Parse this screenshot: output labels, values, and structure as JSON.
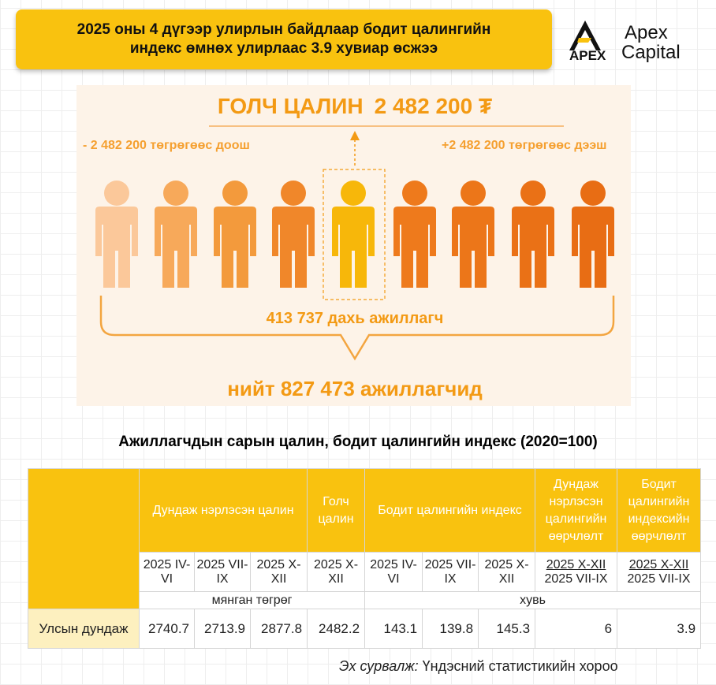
{
  "header": {
    "title": [
      "2025 оны 4 дүгээр улирлын байдлаар бодит цалингийн",
      "индекс өмнөх улирлаас 3.9 хувиар өсжээ"
    ],
    "logo": {
      "mark": "APEX",
      "name_1": "Apex",
      "name_2": "Capital"
    }
  },
  "infographic": {
    "title_label": "ГОЛЧ ЦАЛИН",
    "title_value": "2 482 200 ₮",
    "left_label": "- 2 482 200 төгрөгөөс доош",
    "right_label": "+2 482 200 төгрөгөөс дээш",
    "median_label": "413 737 дахь ажиллагч",
    "total_label": "нийт 827 473 ажиллагчид"
  },
  "table": {
    "title": "Ажиллагчдын сарын цалин, бодит цалингийн индекс (2020=100)",
    "header_groups": [
      "Дундаж нэрлэсэн цалин",
      "Голч цалин",
      "Бодит цалингийн индекс",
      "Дундаж нэрлэсэн цалингийн өөрчлөлт",
      "Бодит цалингийн индексийн өөрчлөлт"
    ],
    "periods": [
      "2025 IV-VI",
      "2025 VII-IX",
      "2025 X-XII",
      "2025 X-XII",
      "2025 IV-VI",
      "2025 VII-IX",
      "2025 X-XII",
      {
        "top": "2025 X-XII",
        "bottom": "2025 VII-IX"
      },
      {
        "top": "2025 X-XII",
        "bottom": "2025 VII-IX"
      }
    ],
    "units": [
      "мянган төгрөг",
      "хувь"
    ],
    "rows": [
      [
        "Улсын дундаж",
        2740.7,
        2713.9,
        2877.8,
        2482.2,
        143.1,
        139.8,
        145.3,
        6,
        3.9
      ]
    ]
  },
  "source": {
    "prefix": "Эх сурвалж:",
    "text": "Үндэсний статистикийн хороо"
  }
}
